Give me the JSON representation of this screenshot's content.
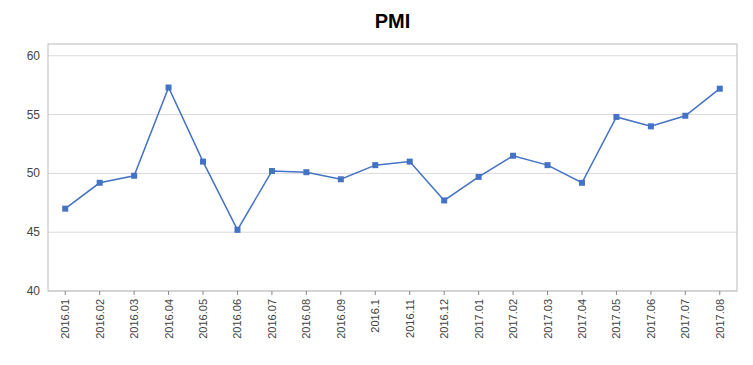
{
  "chart_data": {
    "type": "line",
    "title": "PMI",
    "categories": [
      "2016.01",
      "2016.02",
      "2016.03",
      "2016.04",
      "2016.05",
      "2016.06",
      "2016.07",
      "2016.08",
      "2016.09",
      "2016.1",
      "2016.11",
      "2016.12",
      "2017.01",
      "2017.02",
      "2017.03",
      "2017.04",
      "2017.05",
      "2017.06",
      "2017.07",
      "2017.08"
    ],
    "values": [
      47.0,
      49.2,
      49.8,
      57.3,
      51.0,
      45.2,
      50.2,
      50.1,
      49.5,
      50.7,
      51.0,
      47.7,
      49.7,
      51.5,
      50.7,
      49.2,
      54.8,
      54.0,
      54.9,
      57.2
    ],
    "color": "#4472c4",
    "marker": "square",
    "ylim": [
      40,
      61
    ],
    "yticks": [
      40,
      45,
      50,
      55,
      60
    ],
    "grid": true
  }
}
